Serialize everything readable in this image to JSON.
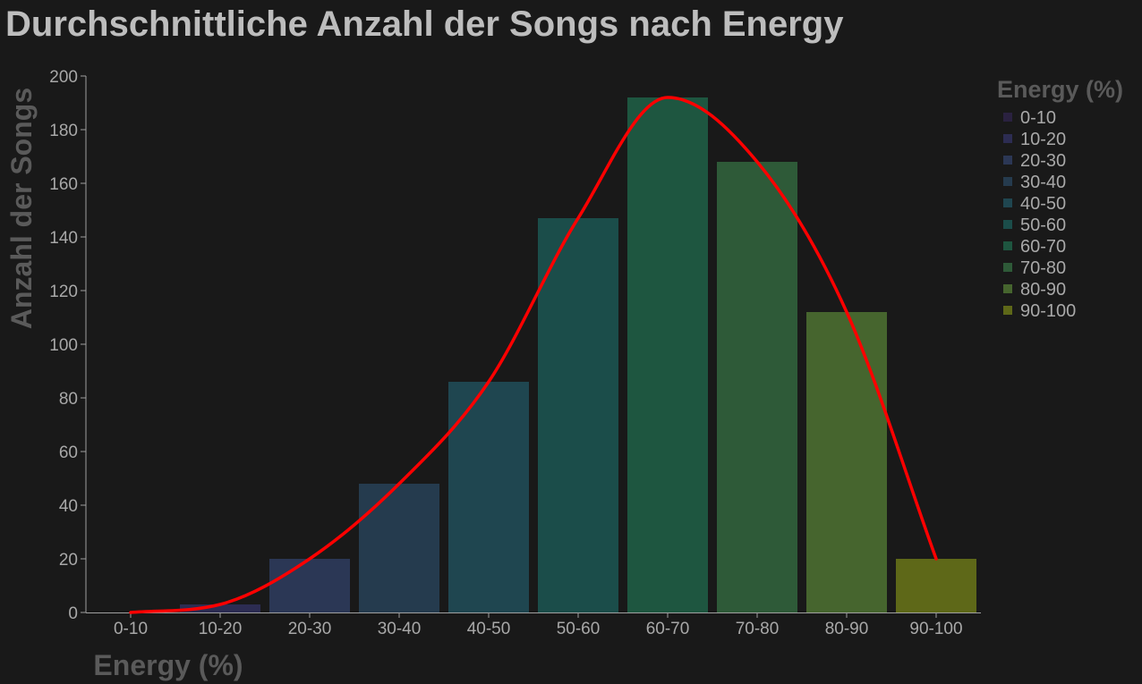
{
  "chart_data": {
    "type": "bar",
    "title": "Durchschnittliche Anzahl der Songs nach Energy",
    "xlabel": "Energy (%)",
    "ylabel": "Anzahl der Songs",
    "categories": [
      "0-10",
      "10-20",
      "20-30",
      "30-40",
      "40-50",
      "50-60",
      "60-70",
      "70-80",
      "80-90",
      "90-100"
    ],
    "values": [
      0,
      3,
      20,
      48,
      86,
      147,
      192,
      168,
      112,
      20
    ],
    "colors": [
      "#2a2140",
      "#2c2c52",
      "#2b3755",
      "#253b4e",
      "#1f4650",
      "#1b4d4a",
      "#1e5640",
      "#2e5a38",
      "#46652e",
      "#5e6818"
    ],
    "ylim": [
      0,
      200
    ],
    "yticks": [
      0,
      20,
      40,
      60,
      80,
      100,
      120,
      140,
      160,
      180,
      200
    ],
    "grid": false,
    "legend": {
      "title": "Energy (%)",
      "placement": "right"
    },
    "trend_line": {
      "color": "#ff0000",
      "values": [
        0,
        3,
        20,
        48,
        86,
        147,
        192,
        168,
        112,
        20
      ]
    }
  }
}
